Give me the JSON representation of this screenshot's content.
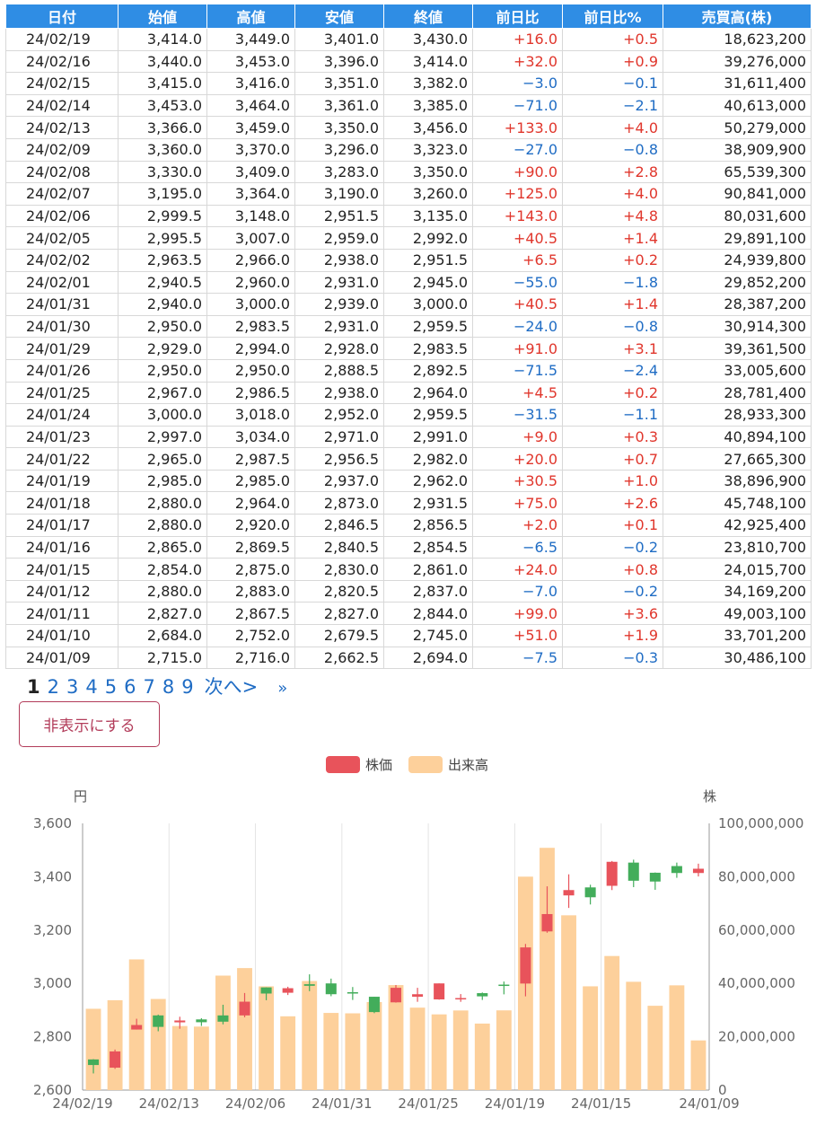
{
  "table": {
    "headers": [
      "日付",
      "始値",
      "高値",
      "安値",
      "終値",
      "前日比",
      "前日比%",
      "売買高(株)"
    ],
    "rows": [
      [
        "24/02/19",
        "3,414.0",
        "3,449.0",
        "3,401.0",
        "3,430.0",
        "+16.0",
        "+0.5",
        "18,623,200"
      ],
      [
        "24/02/16",
        "3,440.0",
        "3,453.0",
        "3,396.0",
        "3,414.0",
        "+32.0",
        "+0.9",
        "39,276,000"
      ],
      [
        "24/02/15",
        "3,415.0",
        "3,416.0",
        "3,351.0",
        "3,382.0",
        "−3.0",
        "−0.1",
        "31,611,400"
      ],
      [
        "24/02/14",
        "3,453.0",
        "3,464.0",
        "3,361.0",
        "3,385.0",
        "−71.0",
        "−2.1",
        "40,613,000"
      ],
      [
        "24/02/13",
        "3,366.0",
        "3,459.0",
        "3,350.0",
        "3,456.0",
        "+133.0",
        "+4.0",
        "50,279,000"
      ],
      [
        "24/02/09",
        "3,360.0",
        "3,370.0",
        "3,296.0",
        "3,323.0",
        "−27.0",
        "−0.8",
        "38,909,900"
      ],
      [
        "24/02/08",
        "3,330.0",
        "3,409.0",
        "3,283.0",
        "3,350.0",
        "+90.0",
        "+2.8",
        "65,539,300"
      ],
      [
        "24/02/07",
        "3,195.0",
        "3,364.0",
        "3,190.0",
        "3,260.0",
        "+125.0",
        "+4.0",
        "90,841,000"
      ],
      [
        "24/02/06",
        "2,999.5",
        "3,148.0",
        "2,951.5",
        "3,135.0",
        "+143.0",
        "+4.8",
        "80,031,600"
      ],
      [
        "24/02/05",
        "2,995.5",
        "3,007.0",
        "2,959.0",
        "2,992.0",
        "+40.5",
        "+1.4",
        "29,891,100"
      ],
      [
        "24/02/02",
        "2,963.5",
        "2,966.0",
        "2,938.0",
        "2,951.5",
        "+6.5",
        "+0.2",
        "24,939,800"
      ],
      [
        "24/02/01",
        "2,940.5",
        "2,960.0",
        "2,931.0",
        "2,945.0",
        "−55.0",
        "−1.8",
        "29,852,200"
      ],
      [
        "24/01/31",
        "2,940.0",
        "3,000.0",
        "2,939.0",
        "3,000.0",
        "+40.5",
        "+1.4",
        "28,387,200"
      ],
      [
        "24/01/30",
        "2,950.0",
        "2,983.5",
        "2,931.0",
        "2,959.5",
        "−24.0",
        "−0.8",
        "30,914,300"
      ],
      [
        "24/01/29",
        "2,929.0",
        "2,994.0",
        "2,928.0",
        "2,983.5",
        "+91.0",
        "+3.1",
        "39,361,500"
      ],
      [
        "24/01/26",
        "2,950.0",
        "2,950.0",
        "2,888.5",
        "2,892.5",
        "−71.5",
        "−2.4",
        "33,005,600"
      ],
      [
        "24/01/25",
        "2,967.0",
        "2,986.5",
        "2,938.0",
        "2,964.0",
        "+4.5",
        "+0.2",
        "28,781,400"
      ],
      [
        "24/01/24",
        "3,000.0",
        "3,018.0",
        "2,952.0",
        "2,959.5",
        "−31.5",
        "−1.1",
        "28,933,300"
      ],
      [
        "24/01/23",
        "2,997.0",
        "3,034.0",
        "2,971.0",
        "2,991.0",
        "+9.0",
        "+0.3",
        "40,894,100"
      ],
      [
        "24/01/22",
        "2,965.0",
        "2,987.5",
        "2,956.5",
        "2,982.0",
        "+20.0",
        "+0.7",
        "27,665,300"
      ],
      [
        "24/01/19",
        "2,985.0",
        "2,985.0",
        "2,937.0",
        "2,962.0",
        "+30.5",
        "+1.0",
        "38,896,900"
      ],
      [
        "24/01/18",
        "2,880.0",
        "2,964.0",
        "2,873.0",
        "2,931.5",
        "+75.0",
        "+2.6",
        "45,748,100"
      ],
      [
        "24/01/17",
        "2,880.0",
        "2,920.0",
        "2,846.5",
        "2,856.5",
        "+2.0",
        "+0.1",
        "42,925,400"
      ],
      [
        "24/01/16",
        "2,865.0",
        "2,869.5",
        "2,840.5",
        "2,854.5",
        "−6.5",
        "−0.2",
        "23,810,700"
      ],
      [
        "24/01/15",
        "2,854.0",
        "2,875.0",
        "2,830.0",
        "2,861.0",
        "+24.0",
        "+0.8",
        "24,015,700"
      ],
      [
        "24/01/12",
        "2,880.0",
        "2,883.0",
        "2,820.5",
        "2,837.0",
        "−7.0",
        "−0.2",
        "34,169,200"
      ],
      [
        "24/01/11",
        "2,827.0",
        "2,867.5",
        "2,827.0",
        "2,844.0",
        "+99.0",
        "+3.6",
        "49,003,100"
      ],
      [
        "24/01/10",
        "2,684.0",
        "2,752.0",
        "2,679.5",
        "2,745.0",
        "+51.0",
        "+1.9",
        "33,701,200"
      ],
      [
        "24/01/09",
        "2,715.0",
        "2,716.0",
        "2,662.5",
        "2,694.0",
        "−7.5",
        "−0.3",
        "30,486,100"
      ]
    ]
  },
  "pagination": {
    "pages": [
      "1",
      "2",
      "3",
      "4",
      "5",
      "6",
      "7",
      "8",
      "9"
    ],
    "current": "1",
    "next_label": "次へ>",
    "last_label": "»"
  },
  "hide_button_label": "非表示にする",
  "colors": {
    "header_bg": "#2f8de4",
    "up": "#e0362c",
    "down": "#1f6cc4",
    "candle_up": "#e8535b",
    "candle_down": "#43ad5b",
    "volume": "#fdd09b"
  },
  "chart_data": {
    "type": "candlestick+bar",
    "legend": [
      "株価",
      "出来高"
    ],
    "legend_position": "top-center",
    "y_left_unit": "円",
    "y_right_unit": "株",
    "y_left_range": [
      2600,
      3600
    ],
    "y_left_ticks": [
      "2,600",
      "2,800",
      "3,000",
      "3,200",
      "3,400",
      "3,600"
    ],
    "y_right_range": [
      0,
      100000000
    ],
    "y_right_ticks": [
      "0",
      "20,000,000",
      "40,000,000",
      "60,000,000",
      "80,000,000",
      "100,000,000"
    ],
    "x_tick_labels": [
      "24/02/19",
      "24/02/13",
      "24/02/06",
      "24/01/31",
      "24/01/25",
      "24/01/19",
      "24/01/15",
      "24/01/09"
    ],
    "grid": "vertical",
    "x": [
      "24/02/19",
      "24/02/16",
      "24/02/15",
      "24/02/14",
      "24/02/13",
      "24/02/09",
      "24/02/08",
      "24/02/07",
      "24/02/06",
      "24/02/05",
      "24/02/02",
      "24/02/01",
      "24/01/31",
      "24/01/30",
      "24/01/29",
      "24/01/26",
      "24/01/25",
      "24/01/24",
      "24/01/23",
      "24/01/22",
      "24/01/19",
      "24/01/18",
      "24/01/17",
      "24/01/16",
      "24/01/15",
      "24/01/12",
      "24/01/11",
      "24/01/10",
      "24/01/09"
    ],
    "candles": [
      {
        "o": 2715,
        "h": 2716,
        "l": 2662.5,
        "c": 2694
      },
      {
        "o": 2684,
        "h": 2752,
        "l": 2679.5,
        "c": 2745
      },
      {
        "o": 2827,
        "h": 2867.5,
        "l": 2827,
        "c": 2844
      },
      {
        "o": 2880,
        "h": 2883,
        "l": 2820.5,
        "c": 2837
      },
      {
        "o": 2854,
        "h": 2875,
        "l": 2830,
        "c": 2861
      },
      {
        "o": 2865,
        "h": 2869.5,
        "l": 2840.5,
        "c": 2854.5
      },
      {
        "o": 2880,
        "h": 2920,
        "l": 2846.5,
        "c": 2856.5
      },
      {
        "o": 2880,
        "h": 2964,
        "l": 2873,
        "c": 2931.5
      },
      {
        "o": 2985,
        "h": 2985,
        "l": 2937,
        "c": 2962
      },
      {
        "o": 2965,
        "h": 2987.5,
        "l": 2956.5,
        "c": 2982
      },
      {
        "o": 2997,
        "h": 3034,
        "l": 2971,
        "c": 2991
      },
      {
        "o": 3000,
        "h": 3018,
        "l": 2952,
        "c": 2959.5
      },
      {
        "o": 2967,
        "h": 2986.5,
        "l": 2938,
        "c": 2964
      },
      {
        "o": 2950,
        "h": 2950,
        "l": 2888.5,
        "c": 2892.5
      },
      {
        "o": 2929,
        "h": 2994,
        "l": 2928,
        "c": 2983.5
      },
      {
        "o": 2950,
        "h": 2983.5,
        "l": 2931,
        "c": 2959.5
      },
      {
        "o": 2940,
        "h": 3000,
        "l": 2939,
        "c": 3000
      },
      {
        "o": 2940.5,
        "h": 2960,
        "l": 2931,
        "c": 2945
      },
      {
        "o": 2963.5,
        "h": 2966,
        "l": 2938,
        "c": 2951.5
      },
      {
        "o": 2995.5,
        "h": 3007,
        "l": 2959,
        "c": 2992
      },
      {
        "o": 2999.5,
        "h": 3148,
        "l": 2951.5,
        "c": 3135
      },
      {
        "o": 3195,
        "h": 3364,
        "l": 3190,
        "c": 3260
      },
      {
        "o": 3330,
        "h": 3409,
        "l": 3283,
        "c": 3350
      },
      {
        "o": 3360,
        "h": 3370,
        "l": 3296,
        "c": 3323
      },
      {
        "o": 3366,
        "h": 3459,
        "l": 3350,
        "c": 3456
      },
      {
        "o": 3453,
        "h": 3464,
        "l": 3361,
        "c": 3385
      },
      {
        "o": 3415,
        "h": 3416,
        "l": 3351,
        "c": 3382
      },
      {
        "o": 3440,
        "h": 3453,
        "l": 3396,
        "c": 3414
      },
      {
        "o": 3414,
        "h": 3449,
        "l": 3401,
        "c": 3430
      }
    ],
    "volumes": [
      30486100,
      33701200,
      49003100,
      34169200,
      24015700,
      23810700,
      42925400,
      45748100,
      38896900,
      27665300,
      40894100,
      28933300,
      28781400,
      33005600,
      39361500,
      30914300,
      28387200,
      29852200,
      24939800,
      29891100,
      80031600,
      90841000,
      65539300,
      38909900,
      50279000,
      40613000,
      31611400,
      39276000,
      18623200
    ]
  }
}
